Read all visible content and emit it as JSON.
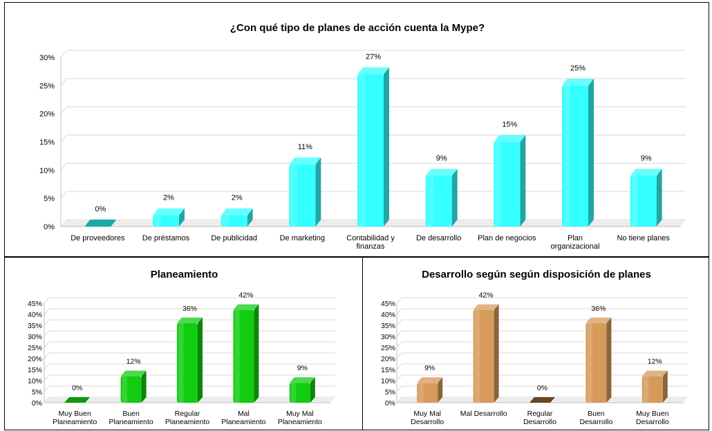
{
  "chart_data": [
    {
      "type": "bar",
      "title": "¿Con qué tipo de planes de acción cuenta la Mype?",
      "categories": [
        [
          "De proveedores"
        ],
        [
          "De préstamos"
        ],
        [
          "De publicidad"
        ],
        [
          "De marketing"
        ],
        [
          "Contabilidad y",
          "finanzas"
        ],
        [
          "De desarrollo"
        ],
        [
          "Plan de negocios"
        ],
        [
          "Plan",
          "organizacional"
        ],
        [
          "No tiene planes"
        ]
      ],
      "values": [
        0,
        2,
        2,
        11,
        27,
        9,
        15,
        25,
        9
      ],
      "data_labels": [
        "0%",
        "2%",
        "2%",
        "11%",
        "27%",
        "9%",
        "15%",
        "25%",
        "9%"
      ],
      "y_ticks": [
        "0%",
        "5%",
        "10%",
        "15%",
        "20%",
        "25%",
        "30%"
      ],
      "ylim": [
        0,
        30
      ],
      "grid": true,
      "legend": "none",
      "color": "#33ffff",
      "zero_color": "#1aa9a9"
    },
    {
      "type": "bar",
      "title": "Planeamiento",
      "categories": [
        [
          "Muy Buen",
          "Planeamiento"
        ],
        [
          "Buen",
          "Planeamiento"
        ],
        [
          "Regular",
          "Planeamiento"
        ],
        [
          "Mal",
          "Planeamiento"
        ],
        [
          "Muy Mal",
          "Planeamiento"
        ]
      ],
      "values": [
        0,
        12,
        36,
        42,
        9
      ],
      "data_labels": [
        "0%",
        "12%",
        "36%",
        "42%",
        "9%"
      ],
      "y_ticks": [
        "0%",
        "5%",
        "10%",
        "15%",
        "20%",
        "25%",
        "30%",
        "35%",
        "40%",
        "45%"
      ],
      "ylim": [
        0,
        45
      ],
      "grid": true,
      "legend": "none",
      "color": "#11cc11",
      "zero_color": "#0a9a0a"
    },
    {
      "type": "bar",
      "title": "Desarrollo según según disposición de planes",
      "categories": [
        [
          "Muy Mal",
          "Desarrollo"
        ],
        [
          "Mal Desarrollo"
        ],
        [
          "Regular",
          "Desarrollo"
        ],
        [
          "Buen",
          "Desarrollo"
        ],
        [
          "Muy Buen",
          "Desarrollo"
        ]
      ],
      "values": [
        9,
        42,
        0,
        36,
        12
      ],
      "data_labels": [
        "9%",
        "42%",
        "0%",
        "36%",
        "12%"
      ],
      "y_ticks": [
        "0%",
        "5%",
        "10%",
        "15%",
        "20%",
        "25%",
        "30%",
        "35%",
        "40%",
        "45%"
      ],
      "ylim": [
        0,
        45
      ],
      "grid": true,
      "legend": "none",
      "color": "#d69a5a",
      "zero_color": "#6a4520"
    }
  ]
}
